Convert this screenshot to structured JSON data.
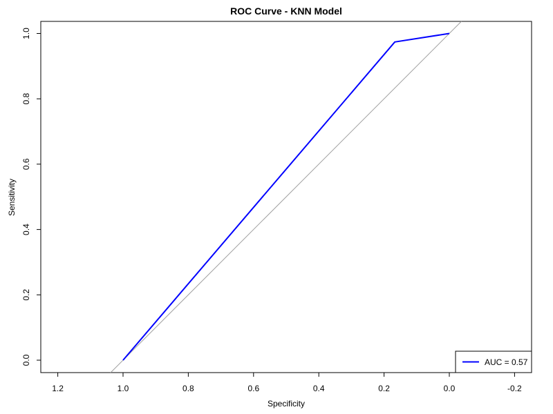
{
  "chart_data": {
    "type": "line",
    "title": "ROC Curve - KNN Model",
    "xlabel": "Specificity",
    "ylabel": "Sensitivity",
    "xlim": [
      1.2,
      -0.2
    ],
    "ylim": [
      0.0,
      1.0
    ],
    "x_ticks": [
      1.2,
      1.0,
      0.8,
      0.6,
      0.4,
      0.2,
      0.0,
      -0.2
    ],
    "x_tick_labels": [
      "1.2",
      "1.0",
      "0.8",
      "0.6",
      "0.4",
      "0.2",
      "0.0",
      "-0.2"
    ],
    "y_ticks": [
      0.0,
      0.2,
      0.4,
      0.6,
      0.8,
      1.0
    ],
    "y_tick_labels": [
      "0.0",
      "0.2",
      "0.4",
      "0.6",
      "0.8",
      "1.0"
    ],
    "series": [
      {
        "name": "AUC = 0.57",
        "color": "#0000ff",
        "x": [
          1.0,
          0.167,
          0.0
        ],
        "y": [
          0.0,
          0.974,
          1.0
        ]
      }
    ],
    "reference_line": {
      "description": "diagonal specificity + sensitivity = 1",
      "color": "#a0a0a0"
    },
    "legend": {
      "position": "bottom-right",
      "entries": [
        "AUC = 0.57"
      ]
    },
    "grid": false
  }
}
